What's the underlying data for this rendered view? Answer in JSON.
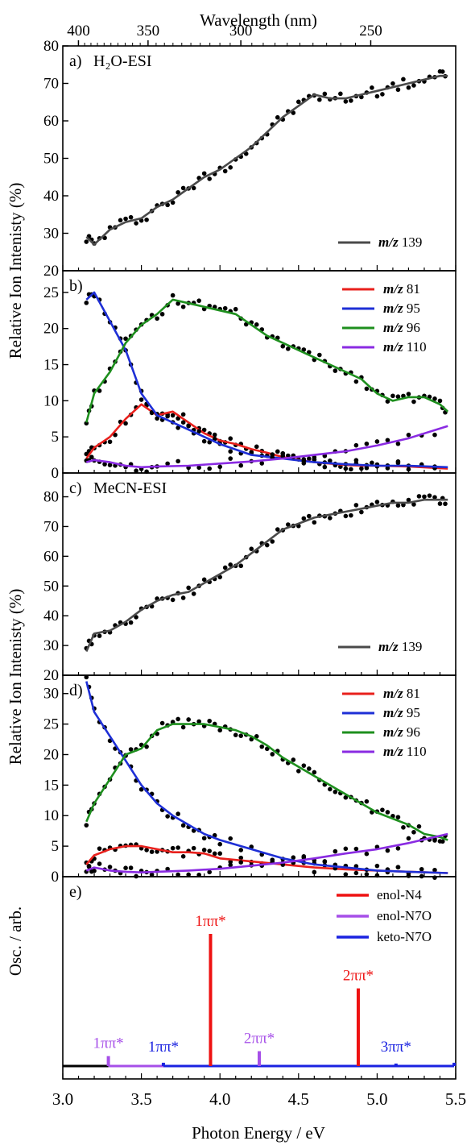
{
  "figure": {
    "top_axis_label": "Wavelength (nm)",
    "top_ticks": [
      400,
      350,
      300,
      250
    ],
    "bottom_axis_label": "Photon Energy / eV",
    "x_ticks": [
      "3.0",
      "3.5",
      "4.0",
      "4.5",
      "5.0",
      "5.5"
    ],
    "y_label_top": "Relative Ion Intenisty (%)",
    "y_label_bottom": "Relative Ion Intenisty (%)",
    "y_label_osc": "Osc. / arb."
  },
  "chart_data": [
    {
      "type": "line",
      "panel": "a)",
      "title": "H₂O-ESI",
      "ylim": [
        20,
        80
      ],
      "yticks": [
        20,
        30,
        40,
        50,
        60,
        70,
        80
      ],
      "series": [
        {
          "name": "m/z 139",
          "color": "#4a4a4a",
          "x": [
            3.15,
            3.2,
            3.3,
            3.4,
            3.5,
            3.6,
            3.7,
            3.8,
            3.9,
            4.0,
            4.1,
            4.2,
            4.3,
            4.4,
            4.5,
            4.6,
            4.7,
            4.8,
            4.9,
            5.0,
            5.1,
            5.2,
            5.3,
            5.4,
            5.45
          ],
          "y": [
            29,
            27,
            31,
            33,
            34,
            37,
            39,
            42,
            45,
            47,
            50,
            53,
            57,
            61,
            64,
            67,
            66,
            66,
            67,
            68,
            69,
            70,
            71,
            72,
            72
          ]
        }
      ]
    },
    {
      "type": "line",
      "panel": "b)",
      "ylim": [
        0,
        28
      ],
      "yticks": [
        0,
        5,
        10,
        15,
        20,
        25
      ],
      "series": [
        {
          "name": "m/z 81",
          "color": "#e8201c",
          "x": [
            3.15,
            3.2,
            3.3,
            3.4,
            3.5,
            3.6,
            3.7,
            3.8,
            3.9,
            4.0,
            4.1,
            4.2,
            4.3,
            4.4,
            4.5,
            4.6,
            4.7,
            4.8,
            4.9,
            5.0,
            5.2,
            5.45
          ],
          "y": [
            2,
            3.5,
            5,
            7.5,
            9.5,
            8,
            8.5,
            7,
            5.5,
            4.5,
            4,
            3.3,
            2.8,
            2.2,
            1.8,
            1.5,
            1.3,
            1.1,
            1,
            1,
            0.9,
            0.6
          ]
        },
        {
          "name": "m/z 95",
          "color": "#1e2fd6",
          "x": [
            3.15,
            3.2,
            3.3,
            3.4,
            3.5,
            3.6,
            3.7,
            3.8,
            3.9,
            4.0,
            4.2,
            4.4,
            4.6,
            4.8,
            5.0,
            5.2,
            5.45
          ],
          "y": [
            24,
            25,
            21,
            17,
            11,
            8,
            7,
            6,
            5,
            4,
            2.5,
            2,
            1.5,
            1.2,
            1,
            1,
            0.8
          ]
        },
        {
          "name": "m/z 96",
          "color": "#1e8f1e",
          "x": [
            3.15,
            3.2,
            3.3,
            3.4,
            3.5,
            3.6,
            3.7,
            3.8,
            3.9,
            4.0,
            4.1,
            4.2,
            4.3,
            4.4,
            4.5,
            4.6,
            4.7,
            4.8,
            4.9,
            5.0,
            5.1,
            5.2,
            5.3,
            5.4,
            5.45
          ],
          "y": [
            7,
            11,
            14,
            18,
            20.5,
            22,
            24,
            23.5,
            23,
            22.5,
            22,
            20.5,
            19,
            18,
            17,
            16,
            15,
            14,
            13,
            11,
            10,
            10.5,
            10.5,
            9.5,
            8.5
          ]
        },
        {
          "name": "m/z 110",
          "color": "#8a2be2",
          "x": [
            3.15,
            3.2,
            3.3,
            3.4,
            3.5,
            3.6,
            3.8,
            4.0,
            4.2,
            4.4,
            4.6,
            4.8,
            5.0,
            5.2,
            5.45
          ],
          "y": [
            1.5,
            1.8,
            1.5,
            1,
            0.8,
            0.9,
            1,
            1.3,
            1.6,
            2,
            2.5,
            3,
            3.8,
            4.8,
            6.5
          ]
        }
      ]
    },
    {
      "type": "line",
      "panel": "c)",
      "title": "MeCN-ESI",
      "ylim": [
        20,
        88
      ],
      "yticks": [
        20,
        30,
        40,
        50,
        60,
        70,
        80
      ],
      "series": [
        {
          "name": "m/z 139",
          "color": "#4a4a4a",
          "x": [
            3.15,
            3.2,
            3.3,
            3.4,
            3.5,
            3.6,
            3.7,
            3.8,
            3.9,
            4.0,
            4.1,
            4.2,
            4.3,
            4.4,
            4.5,
            4.6,
            4.7,
            4.8,
            4.9,
            5.0,
            5.1,
            5.2,
            5.3,
            5.4,
            5.45
          ],
          "y": [
            28,
            34,
            35,
            38,
            42,
            45,
            47,
            48,
            51,
            54,
            57,
            61,
            65,
            69,
            71,
            73,
            74,
            75,
            76,
            77,
            78,
            78,
            79,
            79,
            79
          ]
        }
      ]
    },
    {
      "type": "line",
      "panel": "d)",
      "ylim": [
        0,
        33
      ],
      "yticks": [
        0,
        5,
        10,
        15,
        20,
        25,
        30
      ],
      "series": [
        {
          "name": "m/z 81",
          "color": "#e8201c",
          "x": [
            3.15,
            3.2,
            3.3,
            3.4,
            3.5,
            3.6,
            3.7,
            3.8,
            3.9,
            4.0,
            4.2,
            4.4,
            4.6,
            4.8,
            5.0,
            5.2,
            5.45
          ],
          "y": [
            2,
            3.5,
            4.5,
            5,
            5,
            4.5,
            4,
            4,
            3.8,
            3,
            2.5,
            2,
            1.5,
            1.2,
            1,
            0.8,
            0.6
          ]
        },
        {
          "name": "m/z 95",
          "color": "#1e2fd6",
          "x": [
            3.15,
            3.2,
            3.3,
            3.4,
            3.5,
            3.6,
            3.7,
            3.8,
            3.9,
            4.0,
            4.2,
            4.4,
            4.6,
            4.8,
            5.0,
            5.2,
            5.45
          ],
          "y": [
            32,
            27,
            23,
            19,
            15,
            12,
            10,
            8.5,
            7,
            6,
            4.5,
            3,
            2,
            1.5,
            1,
            0.8,
            0.6
          ]
        },
        {
          "name": "m/z 96",
          "color": "#1e8f1e",
          "x": [
            3.15,
            3.2,
            3.3,
            3.4,
            3.5,
            3.6,
            3.7,
            3.8,
            3.9,
            4.0,
            4.1,
            4.2,
            4.3,
            4.4,
            4.5,
            4.6,
            4.7,
            4.8,
            4.9,
            5.0,
            5.1,
            5.2,
            5.3,
            5.4,
            5.45
          ],
          "y": [
            9,
            12,
            16,
            20,
            21,
            24,
            25,
            25,
            25,
            24.5,
            24,
            23,
            21.5,
            19.5,
            18,
            16.5,
            15,
            13.5,
            12,
            10.5,
            9.5,
            8.5,
            7,
            6.5,
            6
          ]
        },
        {
          "name": "m/z 110",
          "color": "#8a2be2",
          "x": [
            3.15,
            3.2,
            3.3,
            3.4,
            3.5,
            3.6,
            3.8,
            4.0,
            4.2,
            4.4,
            4.6,
            4.8,
            5.0,
            5.2,
            5.45
          ],
          "y": [
            1,
            1.5,
            1,
            0.8,
            0.7,
            0.8,
            1,
            1.3,
            1.8,
            2.3,
            3,
            3.8,
            4.5,
            5.5,
            7
          ]
        }
      ]
    },
    {
      "type": "bar",
      "panel": "e)",
      "ylim": [
        0,
        1
      ],
      "series": [
        {
          "name": "enol-N4",
          "color": "#ee1111",
          "sticks": [
            {
              "x": 3.94,
              "h": 0.8,
              "label": "1ππ*"
            },
            {
              "x": 4.88,
              "h": 0.47,
              "label": "2ππ*"
            }
          ]
        },
        {
          "name": "enol-N7O",
          "color": "#a64fe8",
          "sticks": [
            {
              "x": 3.29,
              "h": 0.06,
              "label": "1ππ*"
            },
            {
              "x": 4.25,
              "h": 0.09,
              "label": "2ππ*"
            }
          ]
        },
        {
          "name": "keto-N7O",
          "color": "#1a22e0",
          "sticks": [
            {
              "x": 3.64,
              "h": 0.02,
              "label": "1ππ*"
            },
            {
              "x": 5.12,
              "h": 0.015,
              "label": "3ππ*"
            },
            {
              "x": 5.49,
              "h": 0.02,
              "label": ""
            }
          ]
        }
      ]
    }
  ]
}
